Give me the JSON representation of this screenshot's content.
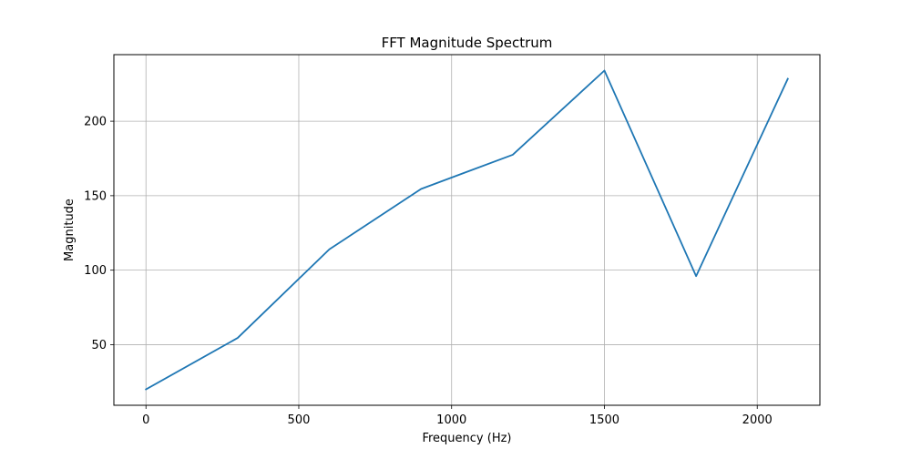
{
  "chart_data": {
    "type": "line",
    "title": "FFT Magnitude Spectrum",
    "xlabel": "Frequency (Hz)",
    "ylabel": "Magnitude",
    "x": [
      0,
      300,
      600,
      900,
      1200,
      1500,
      1800,
      2100
    ],
    "series": [
      {
        "values": [
          20,
          54.5,
          114,
          154.5,
          177.5,
          234,
          96,
          228.5
        ]
      }
    ],
    "xlim": [
      -105,
      2205
    ],
    "ylim": [
      9.3,
      244.7
    ],
    "xticks": [
      0,
      500,
      1000,
      1500,
      2000
    ],
    "yticks": [
      50,
      100,
      150,
      200
    ],
    "xtick_labels": [
      "0",
      "500",
      "1000",
      "1500",
      "2000"
    ],
    "ytick_labels": [
      "50",
      "100",
      "150",
      "200"
    ],
    "grid": true,
    "legend": false,
    "line_color": "#1f77b4",
    "grid_color": "#b0b0b0"
  }
}
